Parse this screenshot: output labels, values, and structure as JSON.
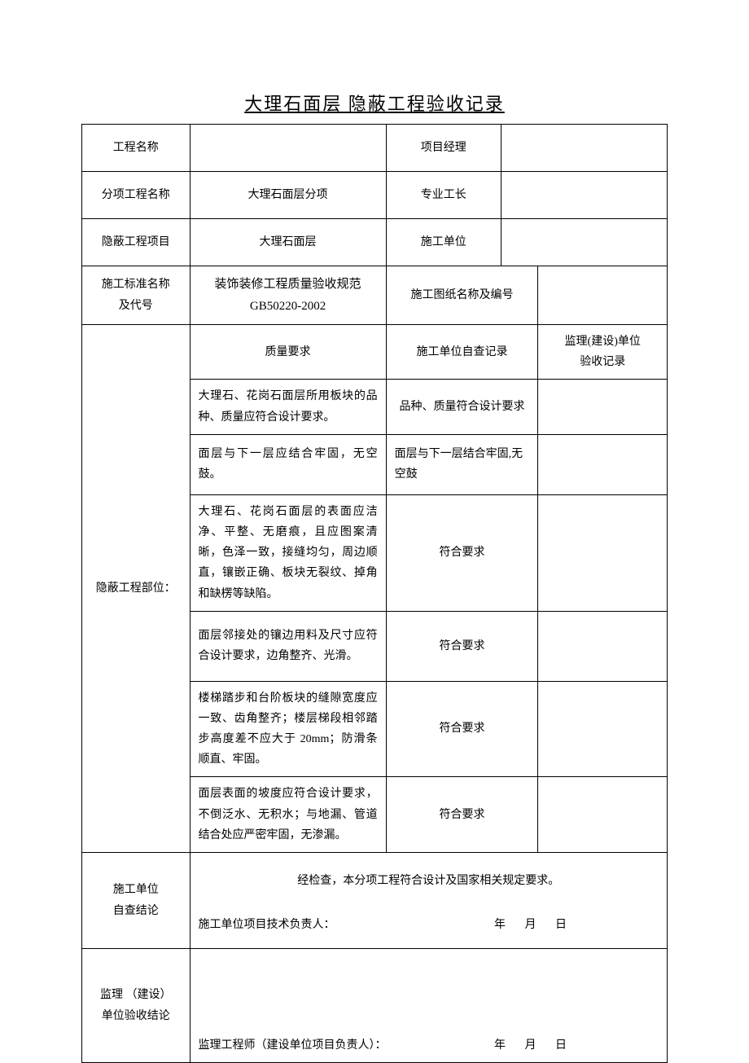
{
  "page_title": "大理石面层 隐蔽工程验收记录",
  "colors": {
    "text": "#000000",
    "border": "#000000",
    "background": "#ffffff"
  },
  "typography": {
    "body_font": "SimSun",
    "body_size_pt": 11,
    "title_size_pt": 17
  },
  "header_rows": [
    {
      "l": "工程名称",
      "m": "",
      "r1": "项目经理",
      "r2": ""
    },
    {
      "l": "分项工程名称",
      "m": "大理石面层分项",
      "r1": "专业工长",
      "r2": ""
    },
    {
      "l": "隐蔽工程项目",
      "m": "大理石面层",
      "r1": "施工单位",
      "r2": ""
    }
  ],
  "standard_row": {
    "l": "施工标准名称\n及代号",
    "m": "装饰装修工程质量验收规范\nGB50220-2002",
    "r": "施工图纸名称及编号",
    "r2": ""
  },
  "requirements_header": {
    "col_quality": "质量要求",
    "col_self": "施工单位自查记录",
    "col_super": "监理(建设)单位\n验收记录"
  },
  "section_label": "隐蔽工程部位：",
  "requirements": [
    {
      "quality": "大理石、花岗石面层所用板块的品种、质量应符合设计要求。",
      "self": "品种、质量符合设计要求",
      "super": "",
      "h": "h3"
    },
    {
      "quality": "面层与下一层应结合牢固，无空鼓。",
      "self": "面层与下一层结合牢固,无空鼓",
      "super": "",
      "h": "h4"
    },
    {
      "quality": "大理石、花岗石面层的表面应洁净、平整、无磨痕，且应图案清晰，色泽一致，接缝均匀，周边顺直，镶嵌正确、板块无裂纹、掉角和缺楞等缺陷。",
      "self": "符合要求",
      "super": "",
      "h": "h5"
    },
    {
      "quality": "面层邻接处的镶边用料及尺寸应符合设计要求，边角整齐、光滑。",
      "self": "符合要求",
      "super": "",
      "h": "h6"
    },
    {
      "quality": "楼梯踏步和台阶板块的缝隙宽度应一致、齿角整齐；楼层梯段相邻踏步高度差不应大于 20mm；防滑条顺直、牢固。",
      "self": "符合要求",
      "super": "",
      "h": "h7"
    },
    {
      "quality": "面层表面的坡度应符合设计要求，不倒泛水、无积水；与地漏、管道结合处应严密牢固，无渗漏。",
      "self": "符合要求",
      "super": "",
      "h": "h8"
    }
  ],
  "self_conclusion": {
    "label": "施工单位\n自查结论",
    "text": "经检查，本分项工程符合设计及国家相关规定要求。",
    "signer_label": "施工单位项目技术负责人：",
    "date_label": "年  月  日"
  },
  "super_conclusion": {
    "label": "监理 （建设）\n单位验收结论",
    "signer_label": "监理工程师（建设单位项目负责人）：",
    "date_label": "年  月  日"
  }
}
